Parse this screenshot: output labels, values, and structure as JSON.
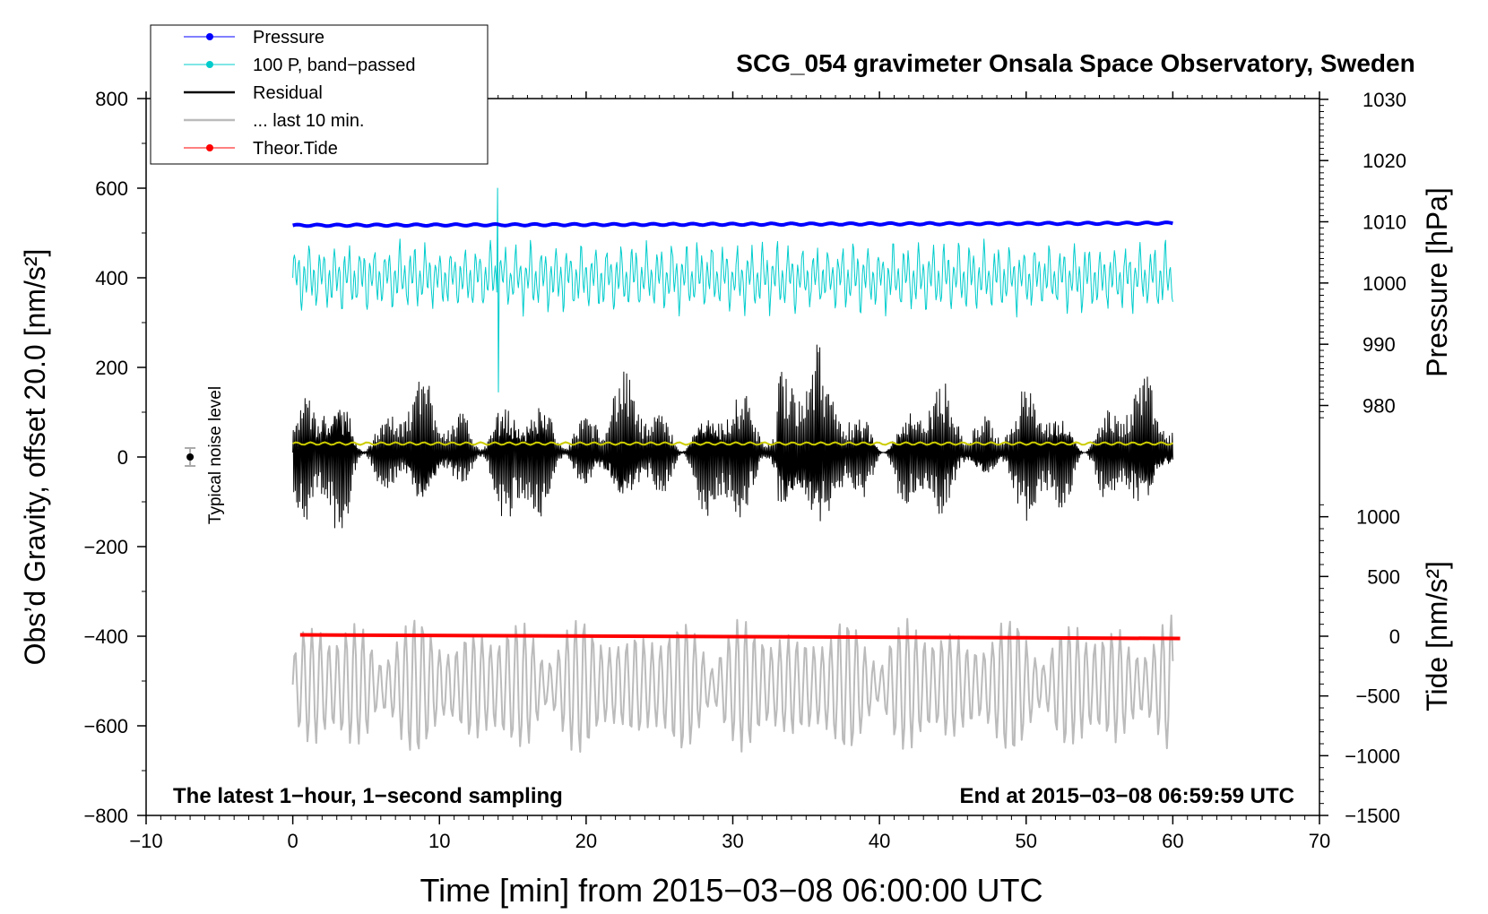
{
  "chart_data": {
    "type": "line",
    "title": "SCG_054 gravimeter Onsala Space Observatory, Sweden",
    "xlabel": "Time [min] from 2015−03−08 06:00:00 UTC",
    "ylabel_main": "Obs’d Gravity, offset 20.0 [nm/s²]",
    "ylabel_pressure": "Pressure [hPa]",
    "ylabel_tide": "Tide [nm/s²]",
    "xlim": [
      -10,
      70
    ],
    "ylim": [
      -800,
      800
    ],
    "x_ticks": [
      "−10",
      "0",
      "10",
      "20",
      "30",
      "40",
      "50",
      "60",
      "70"
    ],
    "x_tick_values": [
      -10,
      0,
      10,
      20,
      30,
      40,
      50,
      60,
      70
    ],
    "y_ticks": [
      "800",
      "600",
      "400",
      "200",
      "0",
      "−200",
      "−400",
      "−600",
      "−800"
    ],
    "y_tick_values": [
      800,
      600,
      400,
      200,
      0,
      -200,
      -400,
      -600,
      -800
    ],
    "pressure_axis": {
      "ticks": [
        "1030",
        "1020",
        "1010",
        "1000",
        "990",
        "980"
      ],
      "tick_values": [
        1030,
        1020,
        1010,
        1000,
        990,
        980
      ],
      "gravity_equivalent": {
        "value_a": 1010,
        "gravity_a": 525,
        "value_b": 980,
        "gravity_b": 115
      }
    },
    "tide_axis": {
      "ticks": [
        "1000",
        "500",
        "0",
        "−500",
        "−1000",
        "−1500"
      ],
      "tick_values": [
        1000,
        500,
        0,
        -500,
        -1000,
        -1500
      ],
      "gravity_equivalent": {
        "value_a": 0,
        "gravity_a": -400,
        "value_b": -1500,
        "gravity_b": -800
      }
    },
    "legend": [
      {
        "label": "Pressure",
        "color": "#0000ff",
        "marker": true
      },
      {
        "label": "100 P, band−passed",
        "color": "#00cccc",
        "marker": true
      },
      {
        "label": "Residual",
        "color": "#000000",
        "marker": false
      },
      {
        "label": "... last 10 min.",
        "color": "#bbbbbb",
        "marker": false
      },
      {
        "label": "Theor.Tide",
        "color": "#ff0000",
        "marker": true
      }
    ],
    "series": [
      {
        "name": "Pressure",
        "color": "#0000ff",
        "x_range": [
          0,
          60
        ],
        "y_start": 517,
        "y_end": 522,
        "noise": 3
      },
      {
        "name": "100 P, band−passed",
        "color": "#00cccc",
        "x_range": [
          0,
          60
        ],
        "center": 400,
        "amplitude": 55
      },
      {
        "name": "Residual",
        "color": "#000000",
        "x_range": [
          0,
          60
        ],
        "center": 10,
        "amplitude": 110
      },
      {
        "name": "Residual smoothed",
        "color": "#cccc00",
        "x_range": [
          0,
          60
        ],
        "y": 30
      },
      {
        "name": "... last 10 min.",
        "color": "#bbbbbb",
        "x_range": [
          0,
          60
        ],
        "center": -510,
        "amplitude": 100
      },
      {
        "name": "Theor.Tide",
        "color": "#ff0000",
        "x_range": [
          0.5,
          60.5
        ],
        "y_start": -397,
        "y_end": -405
      }
    ],
    "noise_marker": {
      "label": "Typical noise level",
      "x": -7,
      "y": 0,
      "err": 20
    },
    "annotations": {
      "bottom_left": "The latest 1−hour, 1−second sampling",
      "bottom_right": "End at 2015−03−08 06:59:59 UTC"
    },
    "colors": {
      "axes": "#000000",
      "smoothed": "#cccc00",
      "noise_marker": "#aaaaaa"
    }
  }
}
